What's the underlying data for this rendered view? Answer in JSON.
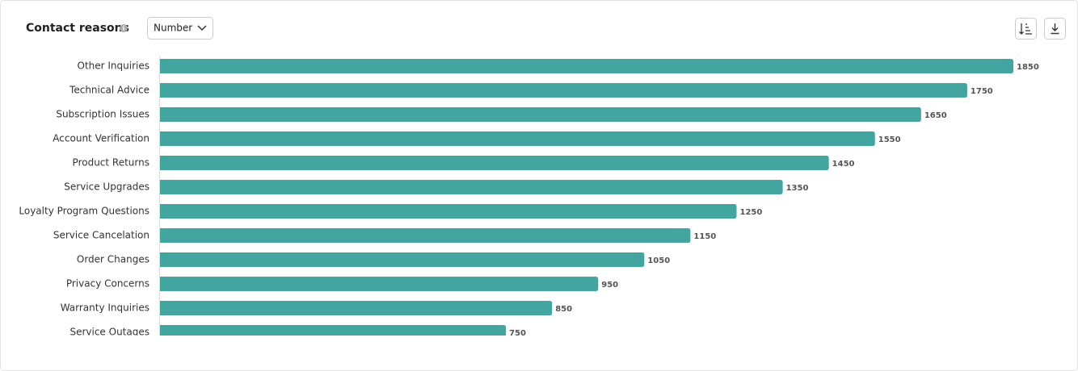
{
  "chart_data": {
    "type": "bar",
    "orientation": "horizontal",
    "title": "Contact reasons",
    "categories": [
      "Other Inquiries",
      "Technical Advice",
      "Subscription Issues",
      "Account Verification",
      "Product Returns",
      "Service Upgrades",
      "Loyalty Program Questions",
      "Service Cancelation",
      "Order Changes",
      "Privacy Concerns",
      "Warranty Inquiries",
      "Service Outages"
    ],
    "values": [
      1850,
      1750,
      1650,
      1550,
      1450,
      1350,
      1250,
      1150,
      1050,
      950,
      850,
      750
    ],
    "color": "#42a5a0"
  },
  "controls": {
    "metric_select": "Number"
  }
}
